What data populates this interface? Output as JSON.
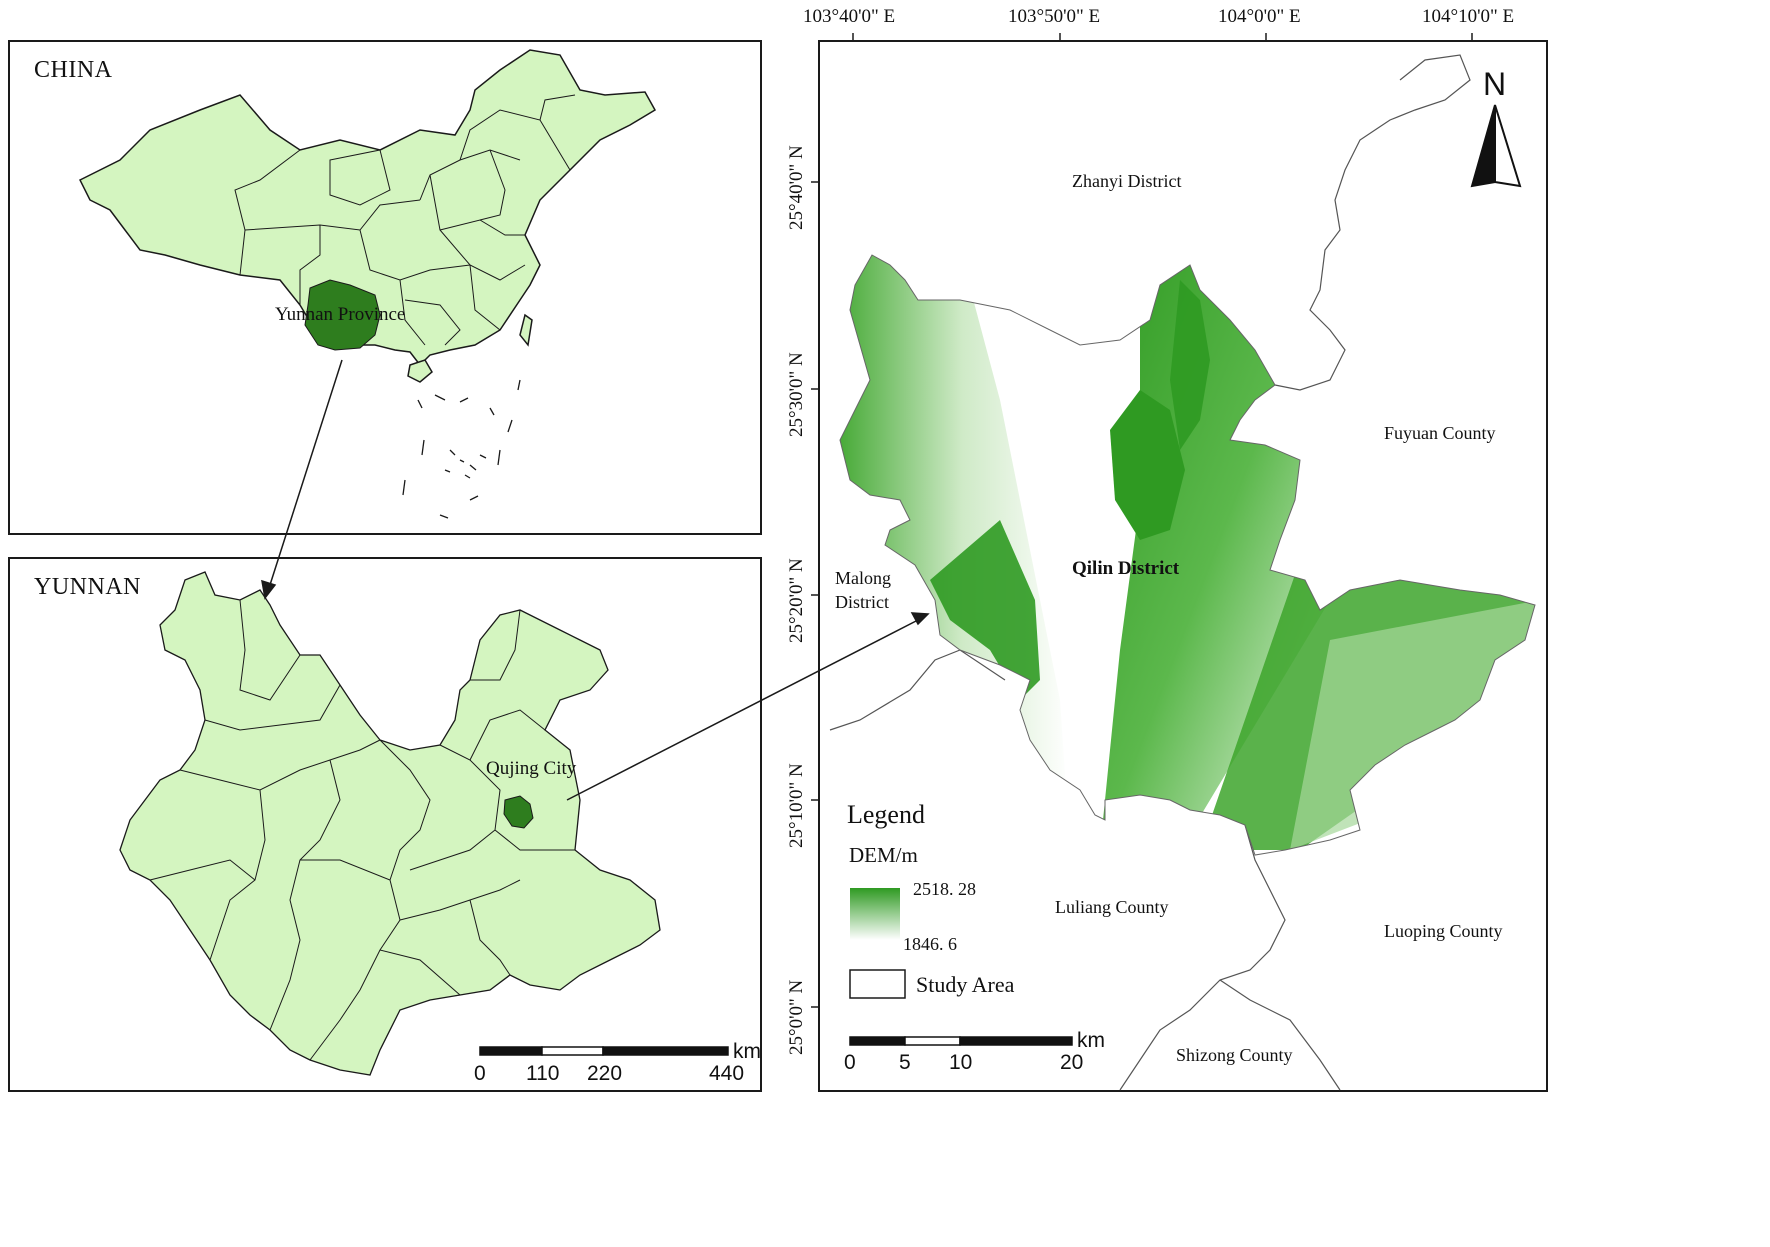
{
  "china_panel": {
    "title": "CHINA",
    "highlight_label": "Yunnan Province"
  },
  "yunnan_panel": {
    "title": "YUNNAN",
    "highlight_label": "Qujing City",
    "scale": {
      "unit": "km",
      "ticks": [
        "0",
        "110",
        "220",
        "440"
      ]
    }
  },
  "study_map": {
    "top_coords": [
      "103°40'0\" E",
      "103°50'0\" E",
      "104°0'0\" E",
      "104°10'0\" E"
    ],
    "left_coords": [
      "25°40'0\" N",
      "25°30'0\" N",
      "25°20'0\" N",
      "25°10'0\" N",
      "25°0'0\" N"
    ],
    "north_label": "N",
    "center_label": "Qilin District",
    "neighbors": {
      "zhanyi": "Zhanyi District",
      "fuyuan": "Fuyuan County",
      "malong_1": "Malong",
      "malong_2": "District",
      "luliang": "Luliang County",
      "luoping": "Luoping County",
      "shizong": "Shizong County"
    },
    "legend": {
      "title": "Legend",
      "dem_title": "DEM/m",
      "dem_max": "2518. 28",
      "dem_min": "1846. 6",
      "study_area": "Study Area"
    },
    "scale": {
      "unit": "km",
      "ticks": [
        "0",
        "5",
        "10",
        "20"
      ]
    }
  },
  "colors": {
    "province_fill": "#d4f5c0",
    "highlight_fill": "#2e7d1e",
    "dem_high": "#2f9a22",
    "dem_low": "#ffffff"
  }
}
